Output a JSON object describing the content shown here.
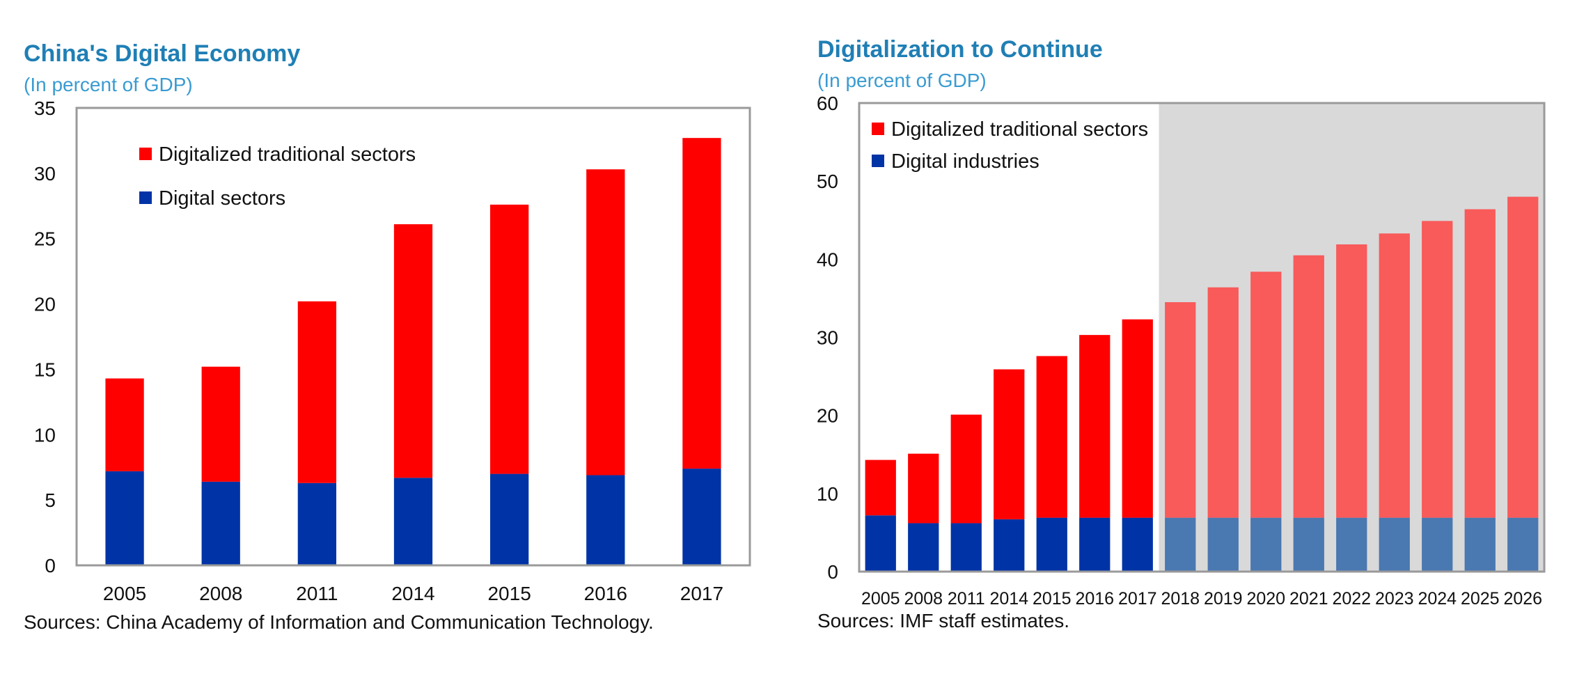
{
  "colors": {
    "digitalized_traditional": "#ff0000",
    "digital": "#0033a6",
    "digitalized_traditional_projection": "#f95a5a",
    "digital_projection": "#4a78b0",
    "projection_shading": "#d9d9d9",
    "frame": "#9a9a9a"
  },
  "chart_data": [
    {
      "type": "bar",
      "stacked": true,
      "title": "China's Digital Economy",
      "subtitle": "(In percent of GDP)",
      "source": "Sources: China Academy of Information and Communication Technology.",
      "categories": [
        "2005",
        "2008",
        "2011",
        "2014",
        "2015",
        "2016",
        "2017"
      ],
      "series": [
        {
          "name": "Digital sectors",
          "values": [
            7.2,
            6.4,
            6.3,
            6.7,
            7.0,
            6.9,
            7.4
          ]
        },
        {
          "name": "Digitalized traditional sectors",
          "values": [
            7.1,
            8.8,
            13.9,
            19.4,
            20.6,
            23.4,
            25.3
          ]
        }
      ],
      "ylim": [
        0,
        35
      ],
      "yticks": [
        0,
        5,
        10,
        15,
        20,
        25,
        30,
        35
      ],
      "grid": false,
      "legend_placement": "top-left"
    },
    {
      "type": "bar",
      "stacked": true,
      "title": "Digitalization  to Continue",
      "subtitle": "(In percent of GDP)",
      "source": "Sources: IMF staff estimates.",
      "categories": [
        "2005",
        "2008",
        "2011",
        "2014",
        "2015",
        "2016",
        "2017",
        "2018",
        "2019",
        "2020",
        "2021",
        "2022",
        "2023",
        "2024",
        "2025",
        "2026"
      ],
      "series": [
        {
          "name": "Digital industries",
          "values": [
            7.2,
            6.2,
            6.2,
            6.7,
            6.9,
            6.9,
            6.9,
            6.9,
            6.9,
            6.9,
            6.9,
            6.9,
            6.9,
            6.9,
            6.9,
            6.9
          ]
        },
        {
          "name": "Digitalized traditional sectors",
          "values": [
            7.1,
            8.9,
            13.9,
            19.2,
            20.7,
            23.4,
            25.4,
            27.6,
            29.5,
            31.5,
            33.6,
            35.0,
            36.4,
            38.0,
            39.5,
            41.1
          ]
        }
      ],
      "projection_start": "2018",
      "ylim": [
        0,
        60
      ],
      "yticks": [
        0,
        10,
        20,
        30,
        40,
        50,
        60
      ],
      "grid": false,
      "legend_placement": "top-left"
    }
  ]
}
